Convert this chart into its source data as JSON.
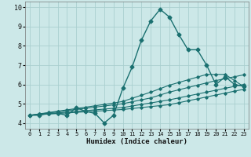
{
  "xlabel": "Humidex (Indice chaleur)",
  "bg_color": "#cce8e8",
  "line_color": "#1a7070",
  "grid_color": "#aacfcf",
  "ylim": [
    3.7,
    10.3
  ],
  "xlim": [
    -0.5,
    23.5
  ],
  "yticks": [
    4,
    5,
    6,
    7,
    8,
    9,
    10
  ],
  "xticks": [
    0,
    1,
    2,
    3,
    4,
    5,
    6,
    7,
    8,
    9,
    10,
    11,
    12,
    13,
    14,
    15,
    16,
    17,
    18,
    19,
    20,
    21,
    22,
    23
  ],
  "series": [
    [
      4.4,
      4.4,
      4.5,
      4.5,
      4.4,
      4.8,
      4.6,
      4.5,
      4.0,
      4.4,
      5.8,
      6.9,
      8.3,
      9.3,
      9.9,
      9.5,
      8.6,
      7.8,
      7.8,
      7.0,
      6.0,
      6.4,
      6.0,
      5.9
    ],
    [
      4.4,
      4.43,
      4.46,
      4.49,
      4.52,
      4.55,
      4.58,
      4.61,
      4.64,
      4.67,
      4.7,
      4.75,
      4.8,
      4.85,
      4.9,
      4.95,
      5.05,
      5.15,
      5.25,
      5.35,
      5.45,
      5.55,
      5.65,
      5.75
    ],
    [
      4.4,
      4.44,
      4.48,
      4.52,
      4.56,
      4.6,
      4.64,
      4.68,
      4.72,
      4.76,
      4.8,
      4.88,
      4.96,
      5.04,
      5.12,
      5.2,
      5.3,
      5.4,
      5.5,
      5.6,
      5.7,
      5.8,
      5.9,
      6.0
    ],
    [
      4.4,
      4.46,
      4.52,
      4.58,
      4.64,
      4.7,
      4.76,
      4.82,
      4.88,
      4.94,
      5.0,
      5.1,
      5.2,
      5.3,
      5.45,
      5.6,
      5.72,
      5.84,
      5.96,
      6.08,
      6.2,
      6.3,
      6.4,
      6.5
    ],
    [
      4.4,
      4.47,
      4.54,
      4.61,
      4.68,
      4.75,
      4.82,
      4.89,
      4.96,
      5.03,
      5.12,
      5.28,
      5.44,
      5.6,
      5.78,
      5.96,
      6.1,
      6.24,
      6.38,
      6.52,
      6.52,
      6.52,
      6.2,
      5.88
    ]
  ]
}
